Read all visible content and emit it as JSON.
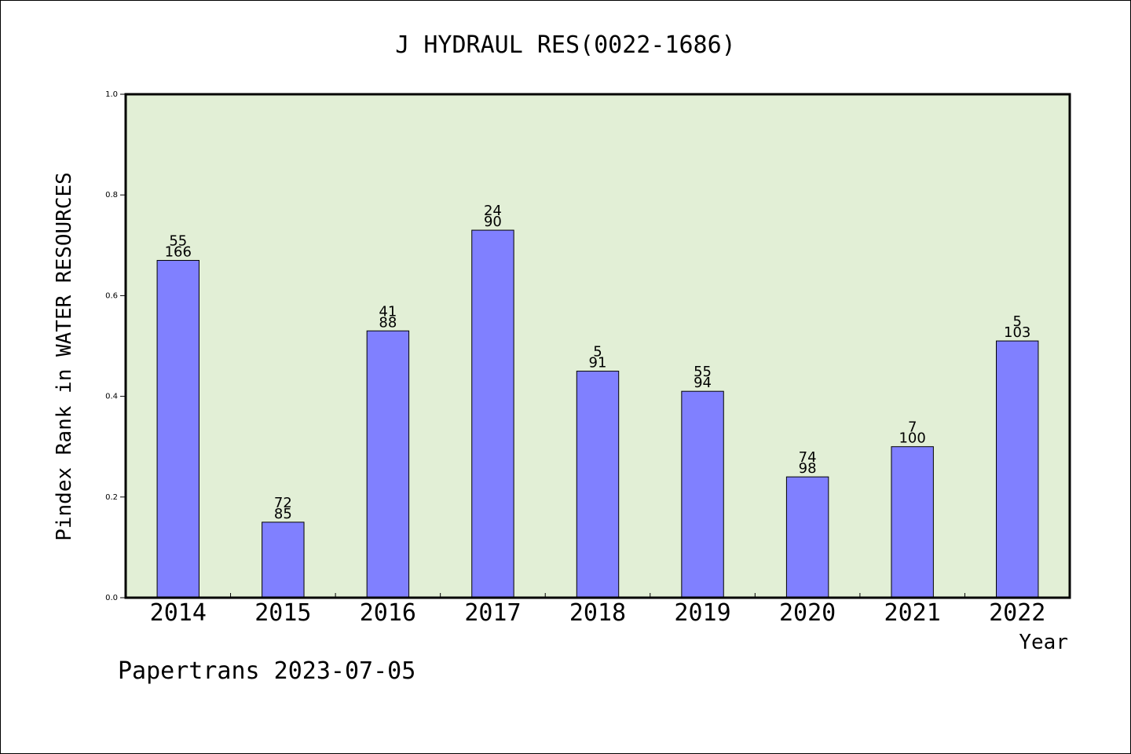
{
  "chart_data": {
    "type": "bar",
    "title": "J HYDRAUL RES(0022-1686)",
    "xlabel": "Year",
    "ylabel": "Pindex Rank in WATER RESOURCES",
    "ylim": [
      0.0,
      1.0
    ],
    "yticks": [
      "0.0",
      "0.2",
      "0.4",
      "0.6",
      "0.8",
      "1.0"
    ],
    "categories": [
      "2014",
      "2015",
      "2016",
      "2017",
      "2018",
      "2019",
      "2020",
      "2021",
      "2022"
    ],
    "values": [
      0.67,
      0.15,
      0.53,
      0.73,
      0.45,
      0.41,
      0.24,
      0.3,
      0.51
    ],
    "label_top": [
      "55",
      "72",
      "41",
      "24",
      "5",
      "55",
      "74",
      "7",
      "5"
    ],
    "label_bottom": [
      "166",
      "85",
      "88",
      "90",
      "91",
      "94",
      "98",
      "100",
      "103"
    ],
    "grid": false,
    "colors": {
      "plot_bg": "#e2efd6",
      "bar_fill": "#8080ff",
      "bar_stroke": "#000000",
      "axis": "#000000",
      "text": "#000000"
    }
  },
  "footer": "Papertrans 2023-07-05"
}
